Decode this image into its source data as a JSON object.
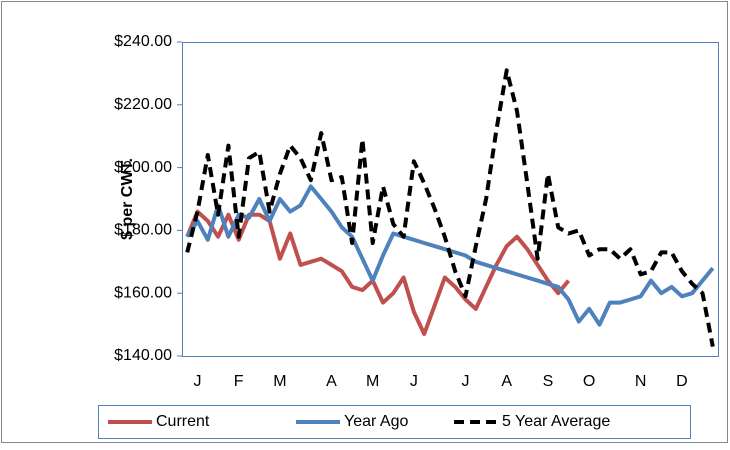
{
  "chart_data": {
    "type": "line",
    "y_label": "$ per CWT.",
    "categories": [
      null,
      "J",
      null,
      null,
      null,
      "F",
      null,
      null,
      null,
      "M",
      null,
      null,
      null,
      null,
      "A",
      null,
      null,
      null,
      "M",
      null,
      null,
      null,
      "J",
      null,
      null,
      null,
      null,
      "J",
      null,
      null,
      null,
      "A",
      null,
      null,
      null,
      "S",
      null,
      null,
      null,
      "O",
      null,
      null,
      null,
      null,
      "N",
      null,
      null,
      null,
      "D",
      null,
      null,
      null
    ],
    "series": [
      {
        "name": "Current",
        "color": "#c0504d",
        "dash": false,
        "values": [
          178,
          186,
          183,
          178,
          185,
          177,
          185,
          185,
          183,
          171,
          179,
          169,
          170,
          171,
          169,
          167,
          162,
          161,
          164,
          157,
          160,
          165,
          154,
          147,
          156,
          165,
          162,
          158,
          155,
          162,
          169,
          175,
          178,
          174,
          169,
          164,
          160,
          164,
          null,
          null,
          null,
          null,
          null,
          null,
          null,
          null,
          null,
          null,
          null,
          null,
          null,
          null
        ]
      },
      {
        "name": "Year Ago",
        "color": "#4f81bd",
        "dash": false,
        "values": [
          178,
          183,
          177,
          188,
          178,
          185,
          184,
          190,
          183,
          190,
          186,
          188,
          194,
          190,
          186,
          181,
          178,
          171,
          164,
          172,
          179,
          178,
          177,
          176,
          175,
          174,
          173,
          172,
          170,
          169,
          168,
          167,
          166,
          165,
          164,
          163,
          162,
          158,
          151,
          155,
          150,
          157,
          157,
          158,
          159,
          164,
          160,
          162,
          159,
          160,
          164,
          168
        ]
      },
      {
        "name": "5 Year Average",
        "color": "#000000",
        "dash": true,
        "values": [
          173,
          186,
          204,
          185,
          207,
          178,
          203,
          205,
          186,
          198,
          207,
          203,
          196,
          211,
          196,
          197,
          176,
          209,
          176,
          194,
          182,
          178,
          202,
          195,
          187,
          178,
          167,
          159,
          175,
          190,
          212,
          231,
          218,
          195,
          171,
          198,
          181,
          179,
          180,
          172,
          174,
          174,
          171,
          174,
          166,
          167,
          173,
          173,
          167,
          163,
          160,
          143
        ]
      }
    ],
    "ylim": [
      140,
      240
    ],
    "yticks": [
      {
        "value": 140,
        "label": "$140.00"
      },
      {
        "value": 160,
        "label": "$160.00"
      },
      {
        "value": 180,
        "label": "$180.00"
      },
      {
        "value": 200,
        "label": "$200.00"
      },
      {
        "value": 220,
        "label": "$220.00"
      },
      {
        "value": 240,
        "label": "$240.00"
      }
    ],
    "grid": false,
    "legend": "bottom"
  }
}
